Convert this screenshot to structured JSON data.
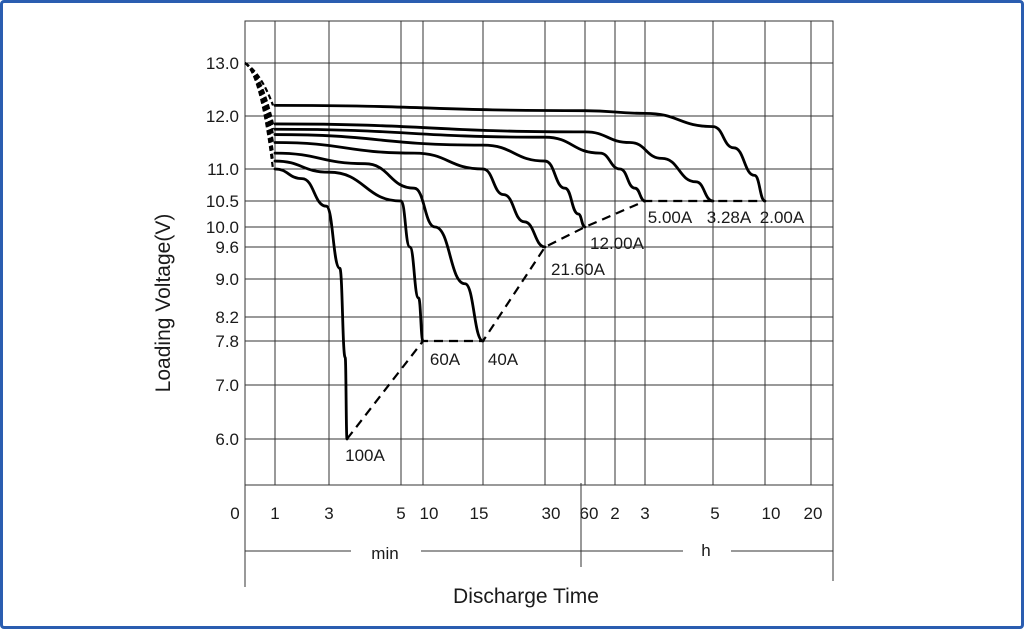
{
  "chart_data": {
    "type": "line",
    "xlabel": "Discharge Time",
    "ylabel": "Loading  Voltage(V)",
    "x_units": [
      {
        "label": "min",
        "ticks": [
          "0",
          "1",
          "3",
          "5",
          "10",
          "15",
          "30",
          "60"
        ]
      },
      {
        "label": "h",
        "ticks": [
          "2",
          "3",
          "5",
          "10",
          "20"
        ]
      }
    ],
    "y_ticks": [
      "13.0",
      "12.0",
      "11.0",
      "10.5",
      "10.0",
      "9.6",
      "9.0",
      "8.2",
      "7.8",
      "7.0",
      "6.0"
    ],
    "series": [
      {
        "name": "100A",
        "curve": [
          [
            1,
            11.0
          ],
          [
            2,
            10.85
          ],
          [
            2.9,
            10.4
          ],
          [
            3.3,
            9.2
          ],
          [
            3.45,
            7.5
          ],
          [
            3.5,
            6.0
          ]
        ]
      },
      {
        "name": "60A",
        "curve": [
          [
            1,
            11.15
          ],
          [
            3,
            10.95
          ],
          [
            5,
            10.5
          ],
          [
            7,
            9.6
          ],
          [
            9,
            8.6
          ],
          [
            10,
            7.8
          ]
        ]
      },
      {
        "name": "40A",
        "curve": [
          [
            1,
            11.3
          ],
          [
            4,
            11.1
          ],
          [
            8,
            10.7
          ],
          [
            11,
            10.0
          ],
          [
            13.5,
            8.9
          ],
          [
            15,
            7.8
          ]
        ]
      },
      {
        "name": "21.60A",
        "curve": [
          [
            1,
            11.5
          ],
          [
            8,
            11.3
          ],
          [
            15,
            11.0
          ],
          [
            20,
            10.6
          ],
          [
            25,
            10.1
          ],
          [
            30,
            9.6
          ]
        ]
      },
      {
        "name": "12.00A",
        "curve": [
          [
            1,
            11.65
          ],
          [
            15,
            11.45
          ],
          [
            30,
            11.15
          ],
          [
            45,
            10.7
          ],
          [
            55,
            10.25
          ],
          [
            60,
            10.0
          ]
        ]
      },
      {
        "name": "5.00A",
        "curve": [
          [
            1,
            11.75
          ],
          [
            30,
            11.6
          ],
          [
            90,
            11.3
          ],
          [
            130,
            11.0
          ],
          [
            160,
            10.7
          ],
          [
            180,
            10.5
          ]
        ]
      },
      {
        "name": "3.28A",
        "curve": [
          [
            1,
            11.85
          ],
          [
            60,
            11.7
          ],
          [
            150,
            11.5
          ],
          [
            210,
            11.2
          ],
          [
            270,
            10.8
          ],
          [
            300,
            10.5
          ]
        ]
      },
      {
        "name": "2.00A",
        "curve": [
          [
            1,
            12.2
          ],
          [
            60,
            12.1
          ],
          [
            180,
            12.05
          ],
          [
            300,
            11.8
          ],
          [
            420,
            11.4
          ],
          [
            540,
            10.9
          ],
          [
            600,
            10.5
          ]
        ]
      }
    ],
    "end_voltage_line": [
      [
        3.5,
        6.0
      ],
      [
        10,
        7.8
      ],
      [
        15,
        7.8
      ],
      [
        30,
        9.6
      ],
      [
        60,
        10.0
      ],
      [
        180,
        10.5
      ],
      [
        300,
        10.5
      ],
      [
        600,
        10.5
      ]
    ],
    "legend": "inline labels at curve ends",
    "grid": true
  }
}
